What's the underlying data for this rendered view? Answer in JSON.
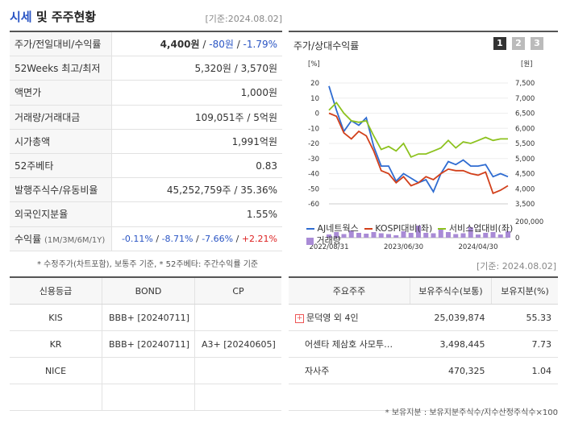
{
  "header": {
    "title_a": "시세",
    "title_b": " 및 주주현황",
    "date": "[기준:2024.08.02]"
  },
  "quote_rows": {
    "price": {
      "label": "주가/전일대비/수익률",
      "price": "4,400원",
      "sep1": " / ",
      "chg": "-80원",
      "sep2": " / ",
      "pct": "-1.79%"
    },
    "w52": {
      "label": "52Weeks 최고/최저",
      "value": "5,320원 / 3,570원"
    },
    "par": {
      "label": "액면가",
      "value": "1,000원"
    },
    "volume": {
      "label": "거래량/거래대금",
      "value": "109,051주 / 5억원"
    },
    "mcap": {
      "label": "시가총액",
      "value": "1,991억원"
    },
    "beta": {
      "label": "52주베타",
      "value": "0.83"
    },
    "shares": {
      "label": "발행주식수/유동비율",
      "value": "45,252,759주 / 35.36%"
    },
    "foreign": {
      "label": "외국인지분율",
      "value": "1.55%"
    },
    "ret": {
      "label": "수익률",
      "label_sm": "(1M/3M/6M/1Y)",
      "r1": "-0.11%",
      "r2": "-8.71%",
      "r3": "-7.66%",
      "r4": "+2.21%",
      "sep": " / "
    }
  },
  "note1": "* 수정주가(차트포함), 보통주 기준, * 52주베타: 주간수익률 기준",
  "chart": {
    "title": "주가/상대수익률",
    "pages": [
      "1",
      "2",
      "3"
    ],
    "left_unit": "[%]",
    "right_unit": "[원]",
    "left_ticks": [
      "20",
      "10",
      "0",
      "-10",
      "-20",
      "-30",
      "-40",
      "-50",
      "-60"
    ],
    "right_ticks": [
      "7,500",
      "7,000",
      "6,500",
      "6,000",
      "5,500",
      "5,000",
      "4,500",
      "4,000",
      "3,500"
    ],
    "vol_ticks": [
      "200,000",
      "0"
    ],
    "x_ticks": [
      "2022/08/31",
      "2023/06/30",
      "2024/04/30"
    ],
    "legend": {
      "s1": "AJ네트웍스",
      "s2": "KOSPI대비(좌)",
      "s3": "서비스업대비(좌)",
      "s4": "거래량"
    },
    "colors": {
      "s1": "#2f6cd1",
      "s2": "#d2401b",
      "s3": "#8dc21f",
      "vol": "#a98bd6"
    }
  },
  "chart_data": {
    "type": "line",
    "x": [
      "2022/08",
      "2022/09",
      "2022/10",
      "2022/11",
      "2022/12",
      "2023/01",
      "2023/02",
      "2023/03",
      "2023/04",
      "2023/05",
      "2023/06",
      "2023/07",
      "2023/08",
      "2023/09",
      "2023/10",
      "2023/11",
      "2023/12",
      "2024/01",
      "2024/02",
      "2024/03",
      "2024/04",
      "2024/05",
      "2024/06",
      "2024/07",
      "2024/08"
    ],
    "series": [
      {
        "name": "AJ네트웍스",
        "axis": "left",
        "values": [
          18,
          2,
          -12,
          -5,
          -8,
          -3,
          -22,
          -35,
          -35,
          -45,
          -40,
          -43,
          -46,
          -44,
          -52,
          -40,
          -32,
          -34,
          -31,
          -35,
          -35,
          -34,
          -42,
          -40,
          -42
        ]
      },
      {
        "name": "KOSPI대비(좌)",
        "axis": "left",
        "values": [
          0,
          -2,
          -13,
          -17,
          -12,
          -15,
          -25,
          -38,
          -40,
          -46,
          -42,
          -48,
          -46,
          -42,
          -44,
          -40,
          -37,
          -38,
          -38,
          -40,
          -41,
          -39,
          -53,
          -51,
          -48
        ]
      },
      {
        "name": "서비스업대비(좌)",
        "axis": "left",
        "values": [
          2,
          7,
          0,
          -5,
          -6,
          -5,
          -15,
          -24,
          -22,
          -25,
          -20,
          -29,
          -27,
          -27,
          -25,
          -23,
          -18,
          -23,
          -19,
          -20,
          -18,
          -16,
          -18,
          -17,
          -17
        ]
      },
      {
        "name": "거래량",
        "axis": "right",
        "values": [
          40000,
          70000,
          45000,
          90000,
          60000,
          50000,
          70000,
          55000,
          45000,
          30000,
          80000,
          60000,
          150000,
          60000,
          55000,
          120000,
          70000,
          45000,
          55000,
          130000,
          40000,
          60000,
          70000,
          40000,
          80000
        ]
      }
    ],
    "ylim_left": [
      -60,
      20
    ],
    "ylim_right": [
      3500,
      7500
    ],
    "vol_lim": [
      0,
      200000
    ]
  },
  "date2": "[기준: 2024.08.02]",
  "credit": {
    "headers": [
      "신용등급",
      "BOND",
      "CP"
    ],
    "rows": [
      [
        "KIS",
        "BBB+ [20240711]",
        ""
      ],
      [
        "KR",
        "BBB+ [20240711]",
        "A3+ [20240605]"
      ],
      [
        "NICE",
        "",
        ""
      ],
      [
        "",
        "",
        ""
      ]
    ]
  },
  "holders": {
    "headers": [
      "주요주주",
      "보유주식수(보통)",
      "보유지분(%)"
    ],
    "rows": [
      {
        "name": "문덕영 외 4인",
        "shares": "25,039,874",
        "pct": "55.33"
      },
      {
        "name": "어센타 제삼호 사모투…",
        "shares": "3,498,445",
        "pct": "7.73"
      },
      {
        "name": "자사주",
        "shares": "470,325",
        "pct": "1.04"
      },
      {
        "name": "",
        "shares": "",
        "pct": ""
      }
    ]
  },
  "note2": "* 보유지분 : 보유지분주식수/지수산정주식수×100"
}
